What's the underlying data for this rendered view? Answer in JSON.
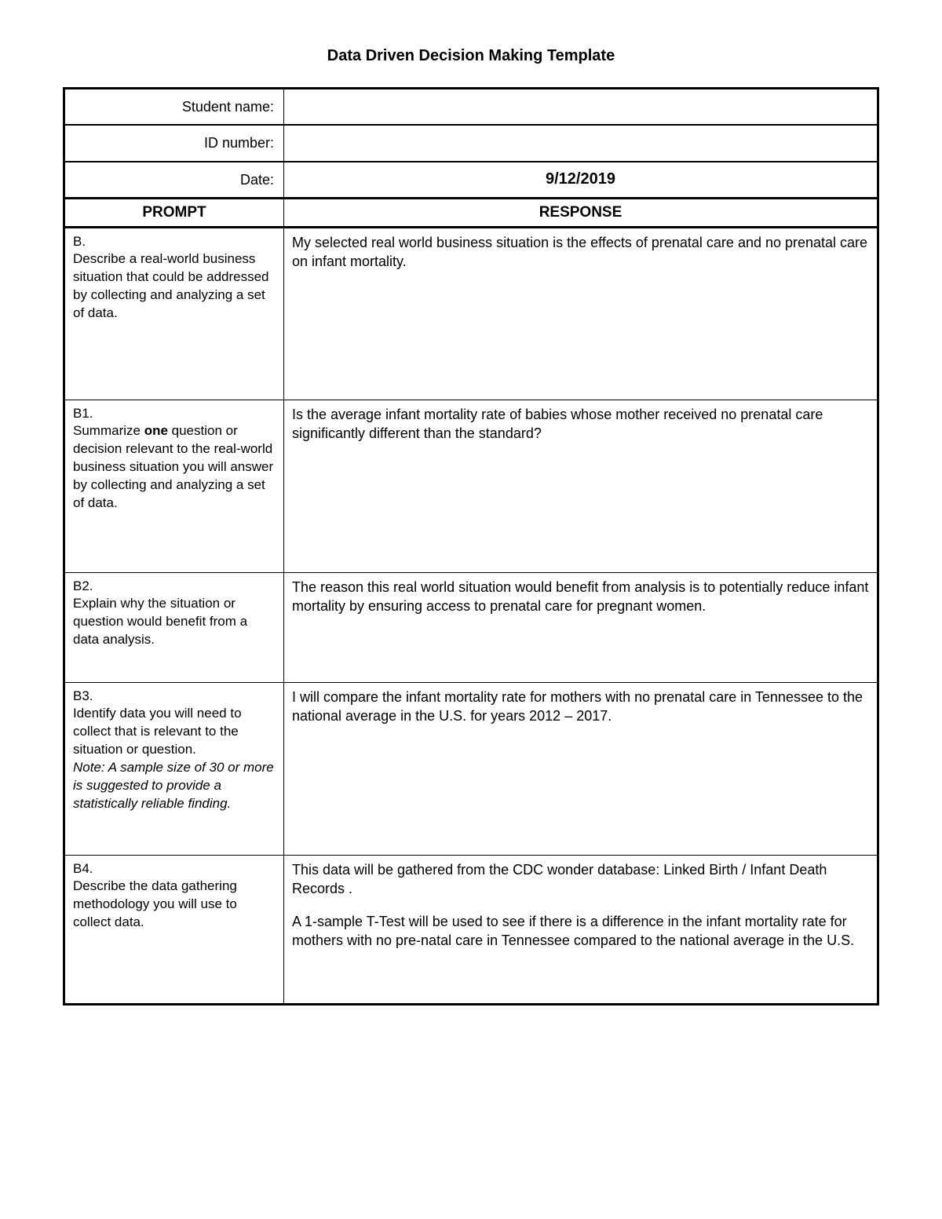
{
  "title": "Data Driven Decision Making Template",
  "info": {
    "student_name_label": "Student name:",
    "student_name_value": "",
    "id_number_label": "ID number:",
    "id_number_value": "",
    "date_label": "Date:",
    "date_value": "9/12/2019"
  },
  "columns": {
    "prompt": "PROMPT",
    "response": "RESPONSE"
  },
  "rows": {
    "b": {
      "id": "B.",
      "prompt": "Describe a real-world business situation that could be addressed by collecting and analyzing a set of data.",
      "response": "My selected real world business situation is the effects of prenatal care and no prenatal care on infant mortality."
    },
    "b1": {
      "id": "B1.",
      "prompt_pre": "Summarize ",
      "prompt_bold": "one",
      "prompt_post": " question or decision relevant to the real-world business situation you will answer by collecting and analyzing a set of data.",
      "response": "Is the average infant mortality rate of babies whose mother received no prenatal care significantly different than the standard?"
    },
    "b2": {
      "id": "B2.",
      "prompt": "Explain why the situation or question would benefit from a data analysis.",
      "response": "The reason this real world situation would benefit from analysis is to potentially reduce infant mortality by ensuring access to prenatal care for pregnant women."
    },
    "b3": {
      "id": "B3.",
      "prompt_main": "Identify data you will need to collect that is relevant to the situation or question.",
      "prompt_note": "Note:  A sample size of 30 or more is suggested to provide a statistically reliable finding.",
      "response": "I will compare the infant mortality rate for mothers with no prenatal care in Tennessee to the national average in the U.S. for years 2012 – 2017."
    },
    "b4": {
      "id": "B4.",
      "prompt": "Describe the data gathering methodology you will use to collect data.",
      "response_p1": "This data will be gathered from the CDC wonder database: Linked Birth / Infant Death Records .",
      "response_p2": "A 1-sample T-Test will be used to see if there is a difference in the infant mortality rate for mothers with no pre-natal care in Tennessee compared to the national average in the U.S."
    }
  },
  "style": {
    "font_family": "Verdana",
    "text_color": "#000000",
    "background_color": "#ffffff",
    "border_color": "#000000",
    "outer_border_width": 3,
    "inner_border_width": 1,
    "title_fontsize": 20,
    "body_fontsize": 18,
    "prompt_col_width_pct": 27,
    "response_col_width_pct": 73
  }
}
